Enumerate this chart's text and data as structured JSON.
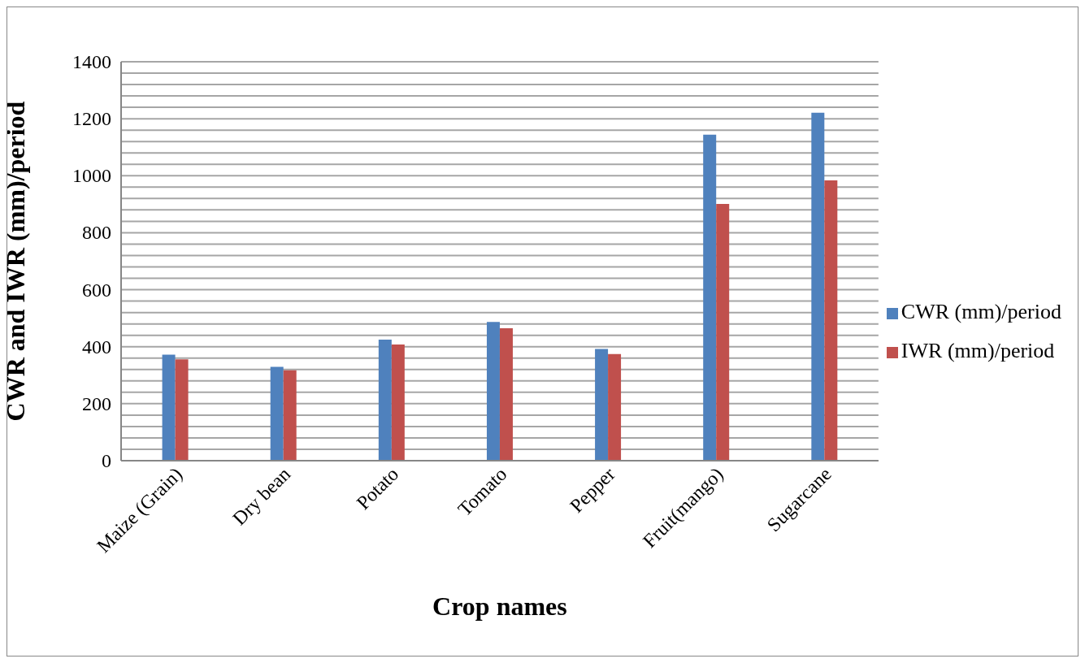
{
  "chart_data": {
    "type": "bar",
    "xlabel": "Crop names",
    "ylabel": "CWR and IWR (mm)/period",
    "categories": [
      "Maize (Grain)",
      "Dry bean",
      "Potato",
      "Tomato",
      "Pepper",
      "Fruit(mango)",
      "Sugarcane"
    ],
    "series": [
      {
        "name": "CWR (mm)/period",
        "color": "#4f81bd",
        "values": [
          372,
          329,
          425,
          487,
          392,
          1144,
          1221
        ]
      },
      {
        "name": "IWR (mm)/period",
        "color": "#c0504d",
        "values": [
          356,
          317,
          408,
          465,
          374,
          901,
          984
        ]
      }
    ],
    "ylim": [
      0,
      1400
    ],
    "yticks": [
      0,
      {
        "value": 40,
        "label": null
      },
      {
        "value": 80,
        "label": null
      },
      {
        "value": 120,
        "label": null
      },
      {
        "value": 160,
        "label": null
      },
      200,
      {
        "value": 240,
        "label": null
      },
      {
        "value": 280,
        "label": null
      },
      {
        "value": 320,
        "label": null
      },
      {
        "value": 360,
        "label": null
      },
      400,
      {
        "value": 440,
        "label": null
      },
      {
        "value": 480,
        "label": null
      },
      {
        "value": 520,
        "label": null
      },
      {
        "value": 560,
        "label": null
      },
      600,
      {
        "value": 640,
        "label": null
      },
      {
        "value": 680,
        "label": null
      },
      {
        "value": 720,
        "label": null
      },
      {
        "value": 760,
        "label": null
      },
      800,
      {
        "value": 840,
        "label": null
      },
      {
        "value": 880,
        "label": null
      },
      {
        "value": 920,
        "label": null
      },
      {
        "value": 960,
        "label": null
      },
      1000,
      {
        "value": 1040,
        "label": null
      },
      {
        "value": 1080,
        "label": null
      },
      {
        "value": 1120,
        "label": null
      },
      {
        "value": 1160,
        "label": null
      },
      1200,
      {
        "value": 1240,
        "label": null
      },
      {
        "value": 1280,
        "label": null
      },
      {
        "value": 1320,
        "label": null
      },
      {
        "value": 1360,
        "label": null
      },
      1400
    ],
    "grid": "y",
    "legend": "right"
  }
}
